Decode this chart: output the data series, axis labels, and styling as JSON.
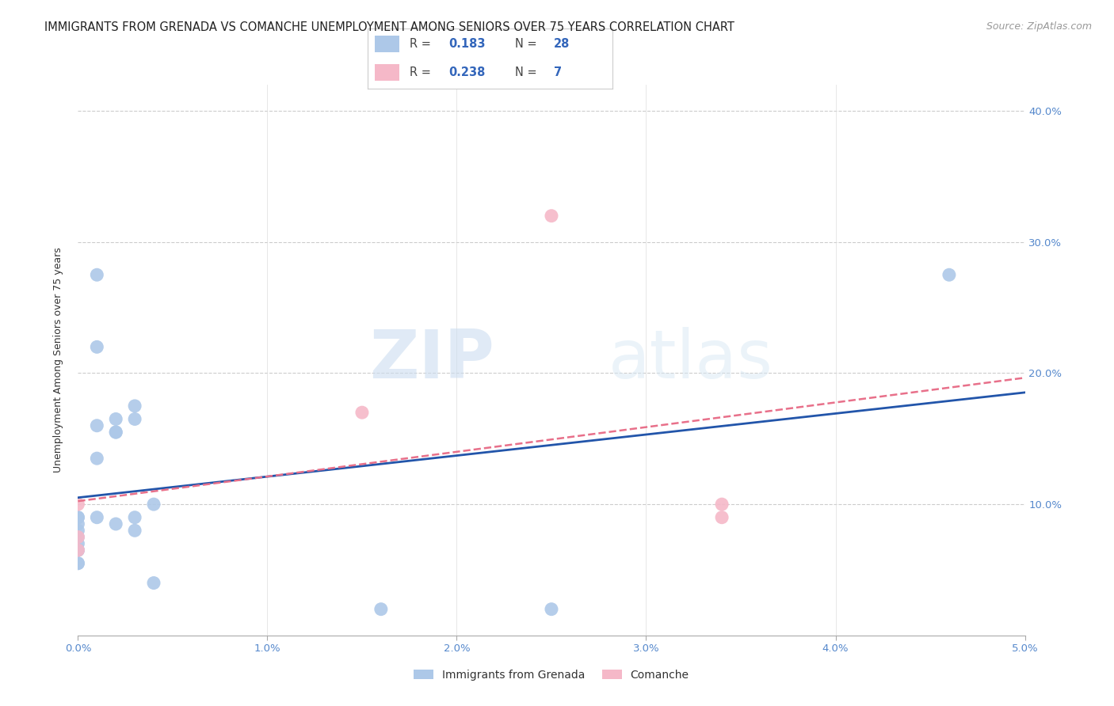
{
  "title": "IMMIGRANTS FROM GRENADA VS COMANCHE UNEMPLOYMENT AMONG SENIORS OVER 75 YEARS CORRELATION CHART",
  "source": "Source: ZipAtlas.com",
  "ylabel": "Unemployment Among Seniors over 75 years",
  "xlim": [
    0.0,
    0.05
  ],
  "ylim": [
    0.0,
    0.42
  ],
  "xtick_labels": [
    "0.0%",
    "1.0%",
    "2.0%",
    "3.0%",
    "4.0%",
    "5.0%"
  ],
  "xtick_vals": [
    0.0,
    0.01,
    0.02,
    0.03,
    0.04,
    0.05
  ],
  "ytick_labels": [
    "10.0%",
    "20.0%",
    "30.0%",
    "40.0%"
  ],
  "ytick_vals": [
    0.1,
    0.2,
    0.3,
    0.4
  ],
  "grenada_x": [
    0.0,
    0.0,
    0.0,
    0.0,
    0.0,
    0.0,
    0.0,
    0.0,
    0.0,
    0.0,
    0.001,
    0.001,
    0.001,
    0.001,
    0.001,
    0.002,
    0.002,
    0.002,
    0.002,
    0.003,
    0.003,
    0.003,
    0.003,
    0.004,
    0.004,
    0.016,
    0.025,
    0.046
  ],
  "grenada_y": [
    0.09,
    0.09,
    0.085,
    0.08,
    0.075,
    0.07,
    0.065,
    0.065,
    0.055,
    0.055,
    0.275,
    0.22,
    0.16,
    0.135,
    0.09,
    0.165,
    0.155,
    0.155,
    0.085,
    0.175,
    0.165,
    0.09,
    0.08,
    0.1,
    0.04,
    0.02,
    0.02,
    0.275
  ],
  "comanche_x": [
    0.0,
    0.0,
    0.0,
    0.015,
    0.025,
    0.034,
    0.034
  ],
  "comanche_y": [
    0.075,
    0.065,
    0.1,
    0.17,
    0.32,
    0.1,
    0.09
  ],
  "grenada_color": "#adc8e8",
  "comanche_color": "#f5b8c8",
  "grenada_line_color": "#2255aa",
  "comanche_line_color": "#e8708a",
  "R_grenada": 0.183,
  "N_grenada": 28,
  "R_comanche": 0.238,
  "N_comanche": 7,
  "legend_label_1": "Immigrants from Grenada",
  "legend_label_2": "Comanche",
  "watermark_zip": "ZIP",
  "watermark_atlas": "atlas",
  "background_color": "#ffffff",
  "title_fontsize": 10.5,
  "axis_label_fontsize": 9,
  "tick_fontsize": 9.5,
  "source_fontsize": 9
}
